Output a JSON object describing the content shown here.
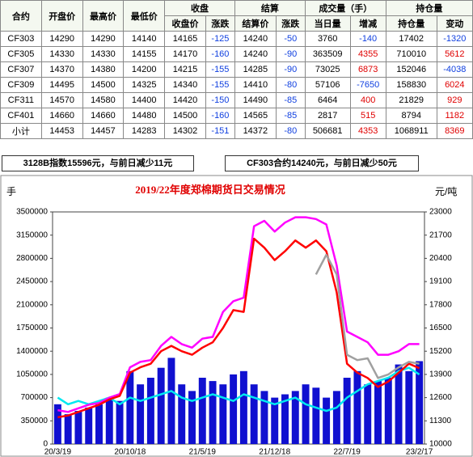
{
  "table": {
    "columns": [
      "合约",
      "开盘价",
      "最高价",
      "最低价"
    ],
    "groups": [
      {
        "name": "收盘",
        "sub": [
          "收盘价",
          "涨跌"
        ]
      },
      {
        "name": "结算",
        "sub": [
          "结算价",
          "涨跌"
        ]
      },
      {
        "name": "成交量（手）",
        "sub": [
          "当日量",
          "增减"
        ]
      },
      {
        "name": "持仓量",
        "sub": [
          "持仓量",
          "变动"
        ]
      }
    ],
    "rows": [
      [
        "CF303",
        14290,
        14290,
        14140,
        14165,
        -125,
        14240,
        -50,
        3760,
        -140,
        17402,
        -1320
      ],
      [
        "CF305",
        14330,
        14330,
        14155,
        14170,
        -160,
        14240,
        -90,
        363509,
        4355,
        710010,
        5612
      ],
      [
        "CF307",
        14370,
        14380,
        14200,
        14215,
        -155,
        14285,
        -90,
        73025,
        6873,
        152046,
        -4038
      ],
      [
        "CF309",
        14495,
        14500,
        14325,
        14340,
        -155,
        14410,
        -80,
        57106,
        -7650,
        158830,
        6024
      ],
      [
        "CF311",
        14570,
        14580,
        14400,
        14420,
        -150,
        14490,
        -85,
        6464,
        400,
        21829,
        929
      ],
      [
        "CF401",
        14660,
        14660,
        14480,
        14500,
        -160,
        14565,
        -85,
        2817,
        515,
        8794,
        1182
      ],
      [
        "小计",
        14453,
        14457,
        14283,
        14302,
        -151,
        14372,
        -80,
        506681,
        4353,
        1068911,
        8369
      ]
    ]
  },
  "notes": [
    "3128B指数15596元，与前日减少11元",
    "CF303合约14240元，与前日减少50元"
  ],
  "chart_data": {
    "type": "line",
    "title": "2019/22年度郑棉期货日交易情况",
    "ylabel": "手",
    "y2label": "元/吨",
    "categories": [
      "20/3/19",
      null,
      null,
      null,
      null,
      null,
      null,
      "20/10/18",
      null,
      null,
      null,
      null,
      null,
      null,
      "21/5/19",
      null,
      null,
      null,
      null,
      null,
      null,
      "21/12/18",
      null,
      null,
      null,
      null,
      null,
      null,
      "22/7/19",
      null,
      null,
      null,
      null,
      null,
      null,
      "23/2/17"
    ],
    "ylim": [
      0,
      3500000
    ],
    "yticks": [
      0,
      350000,
      700000,
      1050000,
      1400000,
      1750000,
      2100000,
      2450000,
      2800000,
      3150000,
      3500000
    ],
    "y2lim": [
      10000,
      23000
    ],
    "y2ticks": [
      10000,
      11300,
      12600,
      13900,
      15200,
      16500,
      17800,
      19100,
      20400,
      21700,
      23000
    ],
    "series": [
      {
        "type": "bar",
        "color": "#1010d0",
        "values": [
          600000,
          450000,
          500000,
          550000,
          600000,
          700000,
          650000,
          1100000,
          900000,
          1000000,
          1150000,
          1300000,
          900000,
          800000,
          1000000,
          950000,
          900000,
          1050000,
          1100000,
          900000,
          800000,
          700000,
          750000,
          800000,
          900000,
          850000,
          700000,
          800000,
          1000000,
          1100000,
          900000,
          950000,
          1000000,
          1200000,
          1100000,
          1250000
        ]
      },
      {
        "type": "line",
        "color": "#00e8f0",
        "values": [
          700000,
          600000,
          650000,
          600000,
          650000,
          700000,
          600000,
          700000,
          650000,
          700000,
          750000,
          800000,
          700000,
          650000,
          700000,
          750000,
          700000,
          650000,
          750000,
          700000,
          650000,
          600000,
          650000,
          700000,
          600000,
          550000,
          500000,
          550000,
          700000,
          800000,
          900000,
          950000,
          1000000,
          1100000,
          1150000,
          1050000
        ]
      },
      {
        "type": "line",
        "axis": "y2",
        "color": "#ff00ff",
        "values": [
          11900,
          11800,
          12000,
          12200,
          12300,
          12600,
          12800,
          14300,
          14600,
          14700,
          15500,
          16000,
          15600,
          15400,
          15900,
          16000,
          17400,
          18000,
          18200,
          22200,
          22500,
          21900,
          22400,
          22700,
          22700,
          22600,
          22300,
          20000,
          16300,
          16000,
          15700,
          15000,
          15000,
          15200,
          15600,
          15600
        ]
      },
      {
        "type": "line",
        "axis": "y2",
        "color": "#ff0000",
        "values": [
          11500,
          11600,
          11800,
          12000,
          12200,
          12500,
          12700,
          14000,
          14300,
          14500,
          15200,
          15500,
          15200,
          15000,
          15400,
          15700,
          16500,
          17500,
          17400,
          21500,
          21000,
          20300,
          20800,
          21400,
          21000,
          21400,
          20800,
          18500,
          14500,
          14000,
          13700,
          13200,
          13500,
          14000,
          14500,
          14250
        ]
      },
      {
        "type": "line",
        "axis": "y2",
        "color": "#a0a0a0",
        "values": [
          null,
          null,
          null,
          null,
          null,
          null,
          null,
          null,
          null,
          null,
          null,
          null,
          null,
          null,
          null,
          null,
          null,
          null,
          null,
          null,
          null,
          null,
          null,
          null,
          null,
          19500,
          20600,
          19500,
          15000,
          14700,
          14800,
          13700,
          13900,
          14300,
          14600,
          14500
        ]
      }
    ]
  }
}
